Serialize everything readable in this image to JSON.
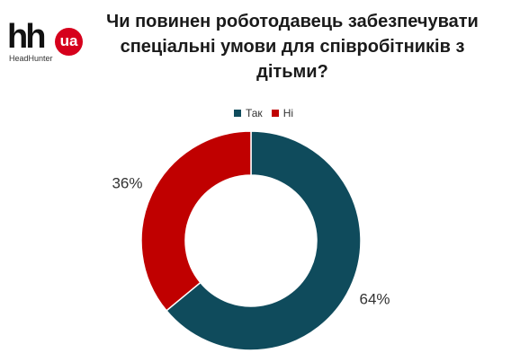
{
  "logo": {
    "wordmark": "hh",
    "badge": "ua",
    "subtitle": "HeadHunter"
  },
  "title": {
    "line1": "Чи повинен роботодавець забезпечувати",
    "line2": "спеціальні умови для співробітників з",
    "line3": "дітьми?"
  },
  "chart_data": {
    "type": "pie",
    "style": "donut",
    "title": "Чи повинен роботодавець забезпечувати спеціальні умови для співробітників з дітьми?",
    "legend_position": "top-center",
    "slices": [
      {
        "name": "Так",
        "value": 64,
        "label": "64%",
        "color": "#0f4b5c"
      },
      {
        "name": "Ні",
        "value": 36,
        "label": "36%",
        "color": "#c00000"
      }
    ]
  }
}
